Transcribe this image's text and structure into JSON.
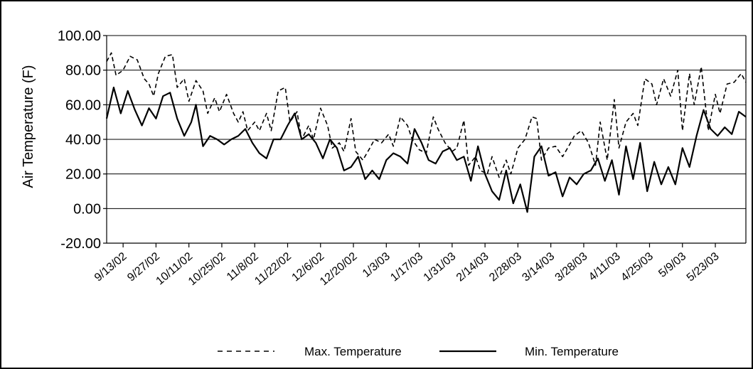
{
  "chart_data": {
    "type": "line",
    "title": "",
    "xlabel": "",
    "ylabel": "Air Temperature (F)",
    "ylim": [
      -20,
      100
    ],
    "xlim": [
      "2002-09-06",
      "2003-06-05"
    ],
    "y_ticks": [
      "100.00",
      "80.00",
      "60.00",
      "40.00",
      "20.00",
      "0.00",
      "-20.00"
    ],
    "x_ticks": [
      "9/13/02",
      "9/27/02",
      "10/11/02",
      "10/25/02",
      "11/8/02",
      "11/22/02",
      "12/6/02",
      "12/20/02",
      "1/3/03",
      "1/17/03",
      "1/31/03",
      "2/14/03",
      "2/28/03",
      "3/14/03",
      "3/28/03",
      "4/11/03",
      "4/25/03",
      "5/9/03",
      "5/23/03"
    ],
    "grid": true,
    "legend": "bottom",
    "series": [
      {
        "name": "Max. Temperature",
        "style": "dashed",
        "color": "#000000",
        "points": [
          [
            "2002-09-06",
            85
          ],
          [
            "2002-09-08",
            90
          ],
          [
            "2002-09-10",
            77
          ],
          [
            "2002-09-13",
            80
          ],
          [
            "2002-09-16",
            88
          ],
          [
            "2002-09-19",
            86
          ],
          [
            "2002-09-22",
            75
          ],
          [
            "2002-09-24",
            72
          ],
          [
            "2002-09-26",
            65
          ],
          [
            "2002-09-28",
            78
          ],
          [
            "2002-10-01",
            88
          ],
          [
            "2002-10-04",
            89
          ],
          [
            "2002-10-06",
            70
          ],
          [
            "2002-10-09",
            75
          ],
          [
            "2002-10-11",
            62
          ],
          [
            "2002-10-14",
            74
          ],
          [
            "2002-10-17",
            68
          ],
          [
            "2002-10-19",
            55
          ],
          [
            "2002-10-22",
            64
          ],
          [
            "2002-10-24",
            56
          ],
          [
            "2002-10-27",
            66
          ],
          [
            "2002-10-30",
            55
          ],
          [
            "2002-11-01",
            50
          ],
          [
            "2002-11-03",
            56
          ],
          [
            "2002-11-05",
            45
          ],
          [
            "2002-11-08",
            50
          ],
          [
            "2002-11-10",
            45
          ],
          [
            "2002-11-13",
            55
          ],
          [
            "2002-11-15",
            45
          ],
          [
            "2002-11-18",
            68
          ],
          [
            "2002-11-21",
            70
          ],
          [
            "2002-11-23",
            50
          ],
          [
            "2002-11-26",
            56
          ],
          [
            "2002-11-28",
            40
          ],
          [
            "2002-12-01",
            48
          ],
          [
            "2002-12-03",
            40
          ],
          [
            "2002-12-06",
            58
          ],
          [
            "2002-12-09",
            48
          ],
          [
            "2002-12-11",
            35
          ],
          [
            "2002-12-14",
            38
          ],
          [
            "2002-12-16",
            33
          ],
          [
            "2002-12-19",
            52
          ],
          [
            "2002-12-21",
            33
          ],
          [
            "2002-12-24",
            28
          ],
          [
            "2002-12-27",
            35
          ],
          [
            "2002-12-29",
            40
          ],
          [
            "2003-01-01",
            38
          ],
          [
            "2003-01-04",
            43
          ],
          [
            "2003-01-06",
            36
          ],
          [
            "2003-01-09",
            53
          ],
          [
            "2003-01-12",
            48
          ],
          [
            "2003-01-14",
            40
          ],
          [
            "2003-01-17",
            34
          ],
          [
            "2003-01-20",
            32
          ],
          [
            "2003-01-23",
            53
          ],
          [
            "2003-01-25",
            46
          ],
          [
            "2003-01-28",
            38
          ],
          [
            "2003-01-31",
            33
          ],
          [
            "2003-02-02",
            35
          ],
          [
            "2003-02-05",
            51
          ],
          [
            "2003-02-07",
            25
          ],
          [
            "2003-02-10",
            30
          ],
          [
            "2003-02-12",
            22
          ],
          [
            "2003-02-15",
            20
          ],
          [
            "2003-02-17",
            30
          ],
          [
            "2003-02-20",
            18
          ],
          [
            "2003-02-23",
            28
          ],
          [
            "2003-02-25",
            20
          ],
          [
            "2003-02-28",
            35
          ],
          [
            "2003-03-03",
            40
          ],
          [
            "2003-03-06",
            53
          ],
          [
            "2003-03-08",
            52
          ],
          [
            "2003-03-10",
            28
          ],
          [
            "2003-03-13",
            35
          ],
          [
            "2003-03-16",
            36
          ],
          [
            "2003-03-19",
            30
          ],
          [
            "2003-03-22",
            37
          ],
          [
            "2003-03-24",
            42
          ],
          [
            "2003-03-27",
            45
          ],
          [
            "2003-03-30",
            38
          ],
          [
            "2003-04-02",
            25
          ],
          [
            "2003-04-04",
            50
          ],
          [
            "2003-04-07",
            28
          ],
          [
            "2003-04-10",
            63
          ],
          [
            "2003-04-12",
            35
          ],
          [
            "2003-04-15",
            50
          ],
          [
            "2003-04-18",
            55
          ],
          [
            "2003-04-20",
            48
          ],
          [
            "2003-04-23",
            75
          ],
          [
            "2003-04-26",
            72
          ],
          [
            "2003-04-28",
            60
          ],
          [
            "2003-05-01",
            75
          ],
          [
            "2003-05-04",
            65
          ],
          [
            "2003-05-07",
            80
          ],
          [
            "2003-05-09",
            45
          ],
          [
            "2003-05-12",
            78
          ],
          [
            "2003-05-14",
            60
          ],
          [
            "2003-05-17",
            82
          ],
          [
            "2003-05-20",
            45
          ],
          [
            "2003-05-23",
            66
          ],
          [
            "2003-05-25",
            55
          ],
          [
            "2003-05-28",
            72
          ],
          [
            "2003-05-31",
            73
          ],
          [
            "2003-06-03",
            78
          ],
          [
            "2003-06-05",
            73
          ]
        ]
      },
      {
        "name": "Min. Temperature",
        "style": "solid",
        "color": "#000000",
        "points": [
          [
            "2002-09-06",
            52
          ],
          [
            "2002-09-09",
            70
          ],
          [
            "2002-09-12",
            55
          ],
          [
            "2002-09-15",
            68
          ],
          [
            "2002-09-18",
            57
          ],
          [
            "2002-09-21",
            48
          ],
          [
            "2002-09-24",
            58
          ],
          [
            "2002-09-27",
            52
          ],
          [
            "2002-09-30",
            65
          ],
          [
            "2002-10-03",
            67
          ],
          [
            "2002-10-06",
            52
          ],
          [
            "2002-10-09",
            42
          ],
          [
            "2002-10-12",
            50
          ],
          [
            "2002-10-14",
            60
          ],
          [
            "2002-10-17",
            36
          ],
          [
            "2002-10-20",
            42
          ],
          [
            "2002-10-23",
            40
          ],
          [
            "2002-10-26",
            37
          ],
          [
            "2002-10-29",
            40
          ],
          [
            "2002-11-01",
            42
          ],
          [
            "2002-11-04",
            46
          ],
          [
            "2002-11-07",
            38
          ],
          [
            "2002-11-10",
            32
          ],
          [
            "2002-11-13",
            29
          ],
          [
            "2002-11-16",
            40
          ],
          [
            "2002-11-19",
            40
          ],
          [
            "2002-11-22",
            48
          ],
          [
            "2002-11-25",
            55
          ],
          [
            "2002-11-28",
            40
          ],
          [
            "2002-12-01",
            43
          ],
          [
            "2002-12-04",
            38
          ],
          [
            "2002-12-07",
            29
          ],
          [
            "2002-12-10",
            40
          ],
          [
            "2002-12-13",
            35
          ],
          [
            "2002-12-16",
            22
          ],
          [
            "2002-12-19",
            24
          ],
          [
            "2002-12-22",
            30
          ],
          [
            "2002-12-25",
            17
          ],
          [
            "2002-12-28",
            22
          ],
          [
            "2002-12-31",
            17
          ],
          [
            "2003-01-03",
            28
          ],
          [
            "2003-01-06",
            32
          ],
          [
            "2003-01-09",
            30
          ],
          [
            "2003-01-12",
            26
          ],
          [
            "2003-01-15",
            46
          ],
          [
            "2003-01-18",
            38
          ],
          [
            "2003-01-21",
            28
          ],
          [
            "2003-01-24",
            26
          ],
          [
            "2003-01-27",
            33
          ],
          [
            "2003-01-30",
            35
          ],
          [
            "2003-02-02",
            28
          ],
          [
            "2003-02-05",
            30
          ],
          [
            "2003-02-08",
            16
          ],
          [
            "2003-02-11",
            36
          ],
          [
            "2003-02-14",
            20
          ],
          [
            "2003-02-17",
            10
          ],
          [
            "2003-02-20",
            5
          ],
          [
            "2003-02-23",
            22
          ],
          [
            "2003-02-26",
            3
          ],
          [
            "2003-03-01",
            14
          ],
          [
            "2003-03-04",
            -2
          ],
          [
            "2003-03-07",
            30
          ],
          [
            "2003-03-10",
            36
          ],
          [
            "2003-03-13",
            19
          ],
          [
            "2003-03-16",
            21
          ],
          [
            "2003-03-19",
            7
          ],
          [
            "2003-03-22",
            18
          ],
          [
            "2003-03-25",
            14
          ],
          [
            "2003-03-28",
            20
          ],
          [
            "2003-03-31",
            22
          ],
          [
            "2003-04-03",
            29
          ],
          [
            "2003-04-06",
            16
          ],
          [
            "2003-04-09",
            28
          ],
          [
            "2003-04-12",
            8
          ],
          [
            "2003-04-15",
            36
          ],
          [
            "2003-04-18",
            17
          ],
          [
            "2003-04-21",
            38
          ],
          [
            "2003-04-24",
            10
          ],
          [
            "2003-04-27",
            27
          ],
          [
            "2003-04-30",
            14
          ],
          [
            "2003-05-03",
            24
          ],
          [
            "2003-05-06",
            14
          ],
          [
            "2003-05-09",
            35
          ],
          [
            "2003-05-12",
            24
          ],
          [
            "2003-05-15",
            42
          ],
          [
            "2003-05-18",
            57
          ],
          [
            "2003-05-21",
            46
          ],
          [
            "2003-05-24",
            42
          ],
          [
            "2003-05-27",
            47
          ],
          [
            "2003-05-30",
            43
          ],
          [
            "2003-06-02",
            56
          ],
          [
            "2003-06-05",
            53
          ]
        ]
      }
    ]
  }
}
